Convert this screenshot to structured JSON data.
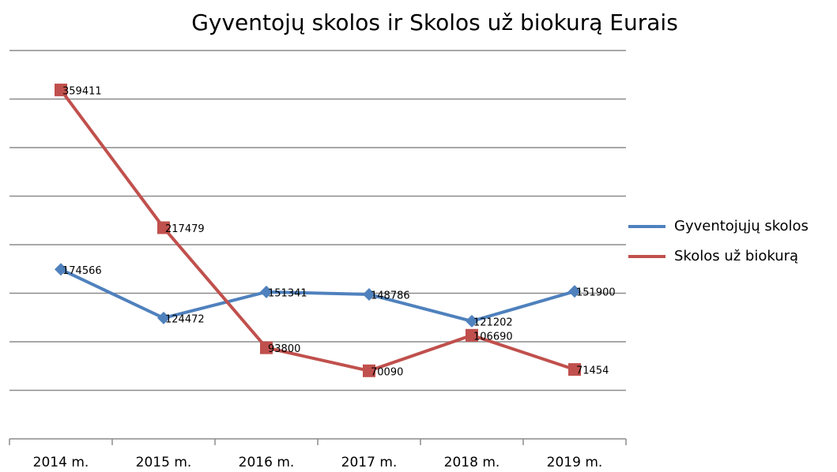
{
  "chart_data": {
    "type": "line",
    "title": "Gyventojų skolos ir Skolos už biokurą  Eurais",
    "categories": [
      "2014 m.",
      "2015 m.",
      "2016 m.",
      "2017 m.",
      "2018 m.",
      "2019 m."
    ],
    "series": [
      {
        "name": "Gyventojųjų skolos",
        "color": "#4f81bd",
        "marker": "diamond",
        "values": [
          174566,
          124472,
          151341,
          148786,
          121202,
          151900
        ]
      },
      {
        "name": "Skolos už biokurą",
        "color": "#c0504d",
        "marker": "square",
        "values": [
          359411,
          217479,
          93800,
          70090,
          106690,
          71454
        ]
      }
    ],
    "ylim": [
      0,
      400000
    ],
    "yticks": [
      50000,
      100000,
      150000,
      200000,
      250000,
      300000,
      350000,
      400000
    ],
    "grid": true,
    "legend": "right"
  }
}
